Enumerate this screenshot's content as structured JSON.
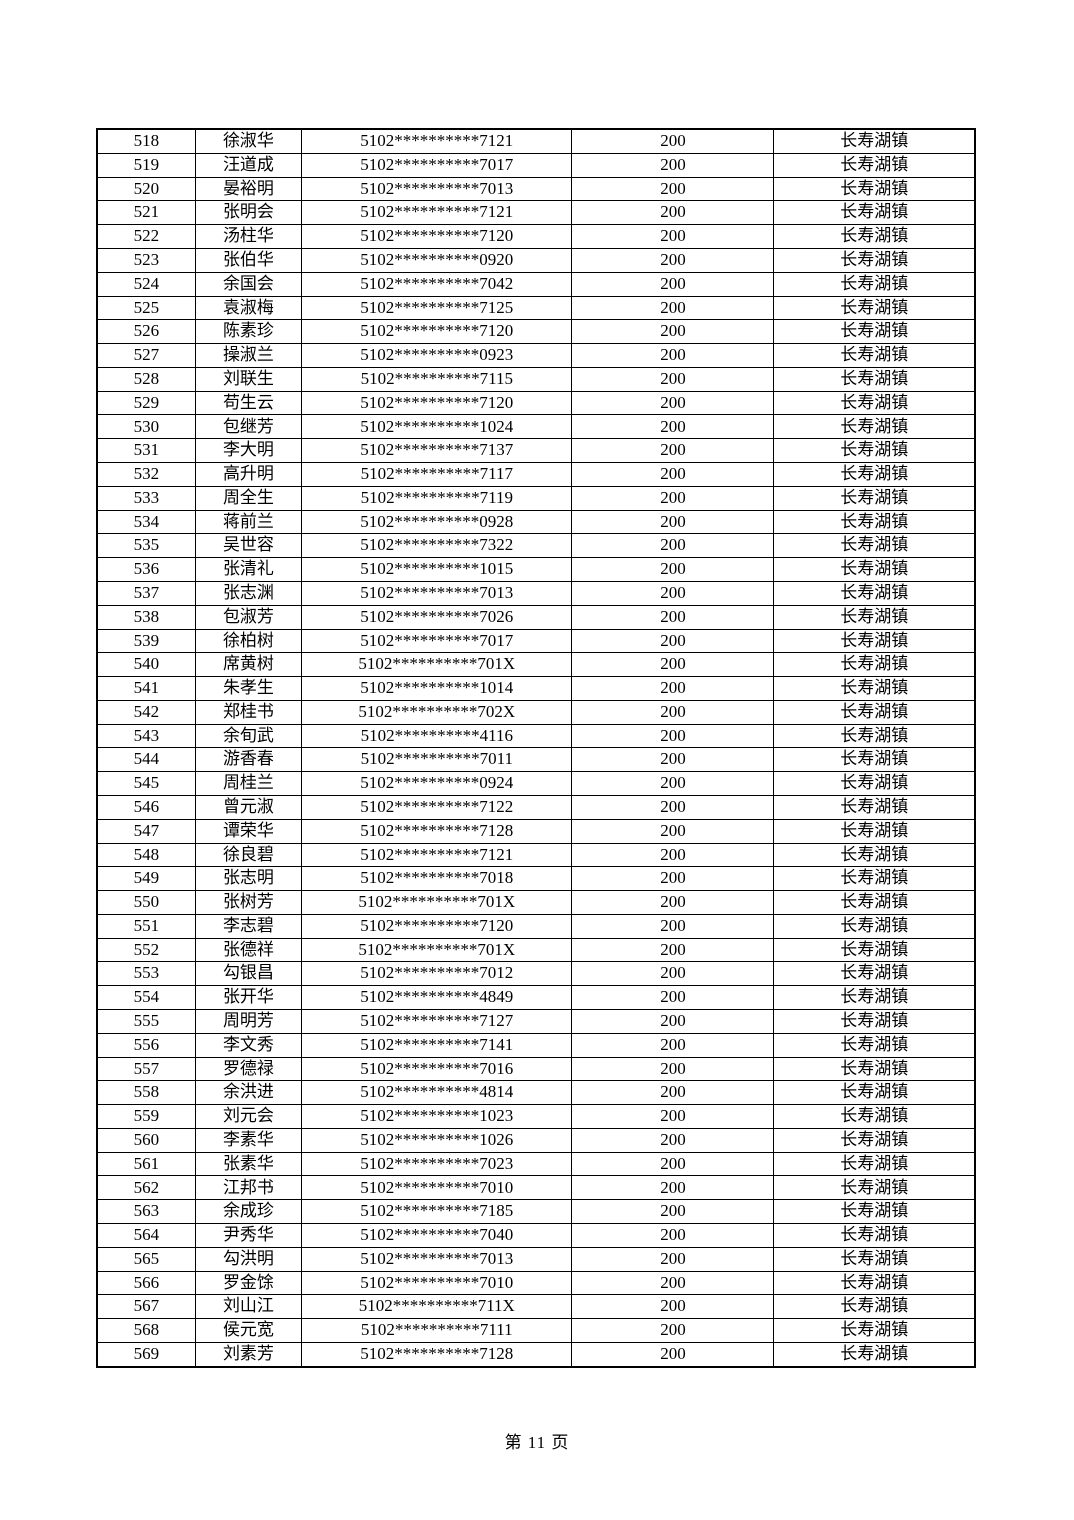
{
  "document": {
    "footer": {
      "page_label": "第 11 页"
    }
  },
  "table": {
    "fields": [
      "no",
      "name",
      "id",
      "amount",
      "town"
    ],
    "rows": [
      {
        "no": "518",
        "name": "徐淑华",
        "id": "5102**********7121",
        "amount": "200",
        "town": "长寿湖镇"
      },
      {
        "no": "519",
        "name": "汪道成",
        "id": "5102**********7017",
        "amount": "200",
        "town": "长寿湖镇"
      },
      {
        "no": "520",
        "name": "晏裕明",
        "id": "5102**********7013",
        "amount": "200",
        "town": "长寿湖镇"
      },
      {
        "no": "521",
        "name": "张明会",
        "id": "5102**********7121",
        "amount": "200",
        "town": "长寿湖镇"
      },
      {
        "no": "522",
        "name": "汤柱华",
        "id": "5102**********7120",
        "amount": "200",
        "town": "长寿湖镇"
      },
      {
        "no": "523",
        "name": "张伯华",
        "id": "5102**********0920",
        "amount": "200",
        "town": "长寿湖镇"
      },
      {
        "no": "524",
        "name": "余国会",
        "id": "5102**********7042",
        "amount": "200",
        "town": "长寿湖镇"
      },
      {
        "no": "525",
        "name": "袁淑梅",
        "id": "5102**********7125",
        "amount": "200",
        "town": "长寿湖镇"
      },
      {
        "no": "526",
        "name": "陈素珍",
        "id": "5102**********7120",
        "amount": "200",
        "town": "长寿湖镇"
      },
      {
        "no": "527",
        "name": "操淑兰",
        "id": "5102**********0923",
        "amount": "200",
        "town": "长寿湖镇"
      },
      {
        "no": "528",
        "name": "刘联生",
        "id": "5102**********7115",
        "amount": "200",
        "town": "长寿湖镇"
      },
      {
        "no": "529",
        "name": "苟生云",
        "id": "5102**********7120",
        "amount": "200",
        "town": "长寿湖镇"
      },
      {
        "no": "530",
        "name": "包继芳",
        "id": "5102**********1024",
        "amount": "200",
        "town": "长寿湖镇"
      },
      {
        "no": "531",
        "name": "李大明",
        "id": "5102**********7137",
        "amount": "200",
        "town": "长寿湖镇"
      },
      {
        "no": "532",
        "name": "高升明",
        "id": "5102**********7117",
        "amount": "200",
        "town": "长寿湖镇"
      },
      {
        "no": "533",
        "name": "周全生",
        "id": "5102**********7119",
        "amount": "200",
        "town": "长寿湖镇"
      },
      {
        "no": "534",
        "name": "蒋前兰",
        "id": "5102**********0928",
        "amount": "200",
        "town": "长寿湖镇"
      },
      {
        "no": "535",
        "name": "吴世容",
        "id": "5102**********7322",
        "amount": "200",
        "town": "长寿湖镇"
      },
      {
        "no": "536",
        "name": "张清礼",
        "id": "5102**********1015",
        "amount": "200",
        "town": "长寿湖镇"
      },
      {
        "no": "537",
        "name": "张志渊",
        "id": "5102**********7013",
        "amount": "200",
        "town": "长寿湖镇"
      },
      {
        "no": "538",
        "name": "包淑芳",
        "id": "5102**********7026",
        "amount": "200",
        "town": "长寿湖镇"
      },
      {
        "no": "539",
        "name": "徐柏树",
        "id": "5102**********7017",
        "amount": "200",
        "town": "长寿湖镇"
      },
      {
        "no": "540",
        "name": "席黄树",
        "id": "5102**********701X",
        "amount": "200",
        "town": "长寿湖镇"
      },
      {
        "no": "541",
        "name": "朱孝生",
        "id": "5102**********1014",
        "amount": "200",
        "town": "长寿湖镇"
      },
      {
        "no": "542",
        "name": "郑桂书",
        "id": "5102**********702X",
        "amount": "200",
        "town": "长寿湖镇"
      },
      {
        "no": "543",
        "name": "余旬武",
        "id": "5102**********4116",
        "amount": "200",
        "town": "长寿湖镇"
      },
      {
        "no": "544",
        "name": "游香春",
        "id": "5102**********7011",
        "amount": "200",
        "town": "长寿湖镇"
      },
      {
        "no": "545",
        "name": "周桂兰",
        "id": "5102**********0924",
        "amount": "200",
        "town": "长寿湖镇"
      },
      {
        "no": "546",
        "name": "曾元淑",
        "id": "5102**********7122",
        "amount": "200",
        "town": "长寿湖镇"
      },
      {
        "no": "547",
        "name": "谭荣华",
        "id": "5102**********7128",
        "amount": "200",
        "town": "长寿湖镇"
      },
      {
        "no": "548",
        "name": "徐良碧",
        "id": "5102**********7121",
        "amount": "200",
        "town": "长寿湖镇"
      },
      {
        "no": "549",
        "name": "张志明",
        "id": "5102**********7018",
        "amount": "200",
        "town": "长寿湖镇"
      },
      {
        "no": "550",
        "name": "张树芳",
        "id": "5102**********701X",
        "amount": "200",
        "town": "长寿湖镇"
      },
      {
        "no": "551",
        "name": "李志碧",
        "id": "5102**********7120",
        "amount": "200",
        "town": "长寿湖镇"
      },
      {
        "no": "552",
        "name": "张德祥",
        "id": "5102**********701X",
        "amount": "200",
        "town": "长寿湖镇"
      },
      {
        "no": "553",
        "name": "勾银昌",
        "id": "5102**********7012",
        "amount": "200",
        "town": "长寿湖镇"
      },
      {
        "no": "554",
        "name": "张开华",
        "id": "5102**********4849",
        "amount": "200",
        "town": "长寿湖镇"
      },
      {
        "no": "555",
        "name": "周明芳",
        "id": "5102**********7127",
        "amount": "200",
        "town": "长寿湖镇"
      },
      {
        "no": "556",
        "name": "李文秀",
        "id": "5102**********7141",
        "amount": "200",
        "town": "长寿湖镇"
      },
      {
        "no": "557",
        "name": "罗德禄",
        "id": "5102**********7016",
        "amount": "200",
        "town": "长寿湖镇"
      },
      {
        "no": "558",
        "name": "余洪进",
        "id": "5102**********4814",
        "amount": "200",
        "town": "长寿湖镇"
      },
      {
        "no": "559",
        "name": "刘元会",
        "id": "5102**********1023",
        "amount": "200",
        "town": "长寿湖镇"
      },
      {
        "no": "560",
        "name": "李素华",
        "id": "5102**********1026",
        "amount": "200",
        "town": "长寿湖镇"
      },
      {
        "no": "561",
        "name": "张素华",
        "id": "5102**********7023",
        "amount": "200",
        "town": "长寿湖镇"
      },
      {
        "no": "562",
        "name": "江邦书",
        "id": "5102**********7010",
        "amount": "200",
        "town": "长寿湖镇"
      },
      {
        "no": "563",
        "name": "余成珍",
        "id": "5102**********7185",
        "amount": "200",
        "town": "长寿湖镇"
      },
      {
        "no": "564",
        "name": "尹秀华",
        "id": "5102**********7040",
        "amount": "200",
        "town": "长寿湖镇"
      },
      {
        "no": "565",
        "name": "勾洪明",
        "id": "5102**********7013",
        "amount": "200",
        "town": "长寿湖镇"
      },
      {
        "no": "566",
        "name": "罗金馀",
        "id": "5102**********7010",
        "amount": "200",
        "town": "长寿湖镇"
      },
      {
        "no": "567",
        "name": "刘山江",
        "id": "5102**********711X",
        "amount": "200",
        "town": "长寿湖镇"
      },
      {
        "no": "568",
        "name": "侯元宽",
        "id": "5102**********7111",
        "amount": "200",
        "town": "长寿湖镇"
      },
      {
        "no": "569",
        "name": "刘素芳",
        "id": "5102**********7128",
        "amount": "200",
        "town": "长寿湖镇"
      }
    ]
  }
}
